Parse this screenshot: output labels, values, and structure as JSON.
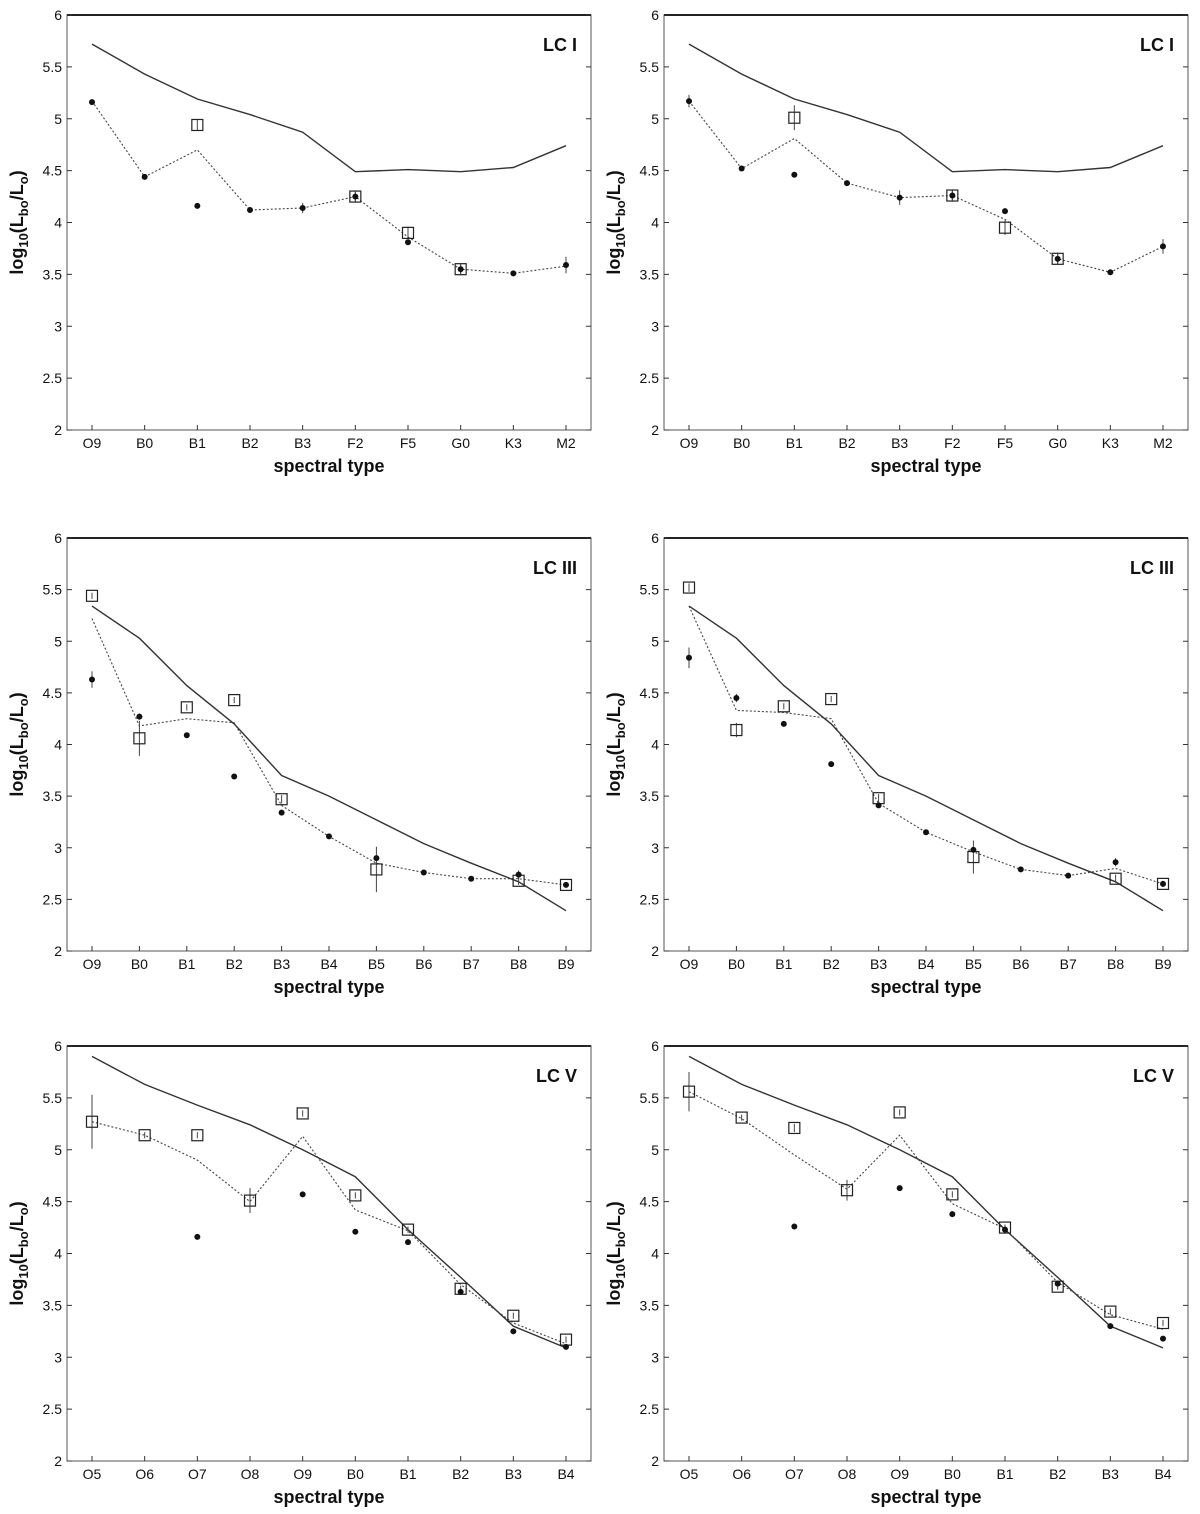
{
  "figure": {
    "panels": [
      {
        "label": "LC I",
        "xlabel": "spectral type",
        "ylabel_main": "log",
        "ylabel_sub": "10",
        "ylabel_L": "(L",
        "ylabel_bo": "bo",
        "ylabel_slash": "/L",
        "ylabel_o": "o",
        "ylabel_close": ")"
      },
      {
        "label": "LC I",
        "xlabel": "spectral type",
        "ylabel_main": "log",
        "ylabel_sub": "10",
        "ylabel_L": "(L",
        "ylabel_bo": "bo",
        "ylabel_slash": "/L",
        "ylabel_o": "o",
        "ylabel_close": ")"
      },
      {
        "label": "LC III",
        "xlabel": "spectral type",
        "ylabel_main": "log",
        "ylabel_sub": "10",
        "ylabel_L": "(L",
        "ylabel_bo": "bo",
        "ylabel_slash": "/L",
        "ylabel_o": "o",
        "ylabel_close": ")"
      },
      {
        "label": "LC III",
        "xlabel": "spectral type",
        "ylabel_main": "log",
        "ylabel_sub": "10",
        "ylabel_L": "(L",
        "ylabel_bo": "bo",
        "ylabel_slash": "/L",
        "ylabel_o": "o",
        "ylabel_close": ")"
      },
      {
        "label": "LC V",
        "xlabel": "spectral type",
        "ylabel_main": "log",
        "ylabel_sub": "10",
        "ylabel_L": "(L",
        "ylabel_bo": "bo",
        "ylabel_slash": "/L",
        "ylabel_o": "o",
        "ylabel_close": ")"
      },
      {
        "label": "LC V",
        "xlabel": "spectral type",
        "ylabel_main": "log",
        "ylabel_sub": "10",
        "ylabel_L": "(L",
        "ylabel_bo": "bo",
        "ylabel_slash": "/L",
        "ylabel_o": "o",
        "ylabel_close": ")"
      }
    ]
  },
  "chart_data": [
    {
      "type": "line",
      "title": "LC I",
      "xlabel": "spectral type",
      "ylabel": "log10(Lbo/Lo)",
      "ylim": [
        2,
        6
      ],
      "yticks": [
        2,
        2.5,
        3,
        3.5,
        4,
        4.5,
        5,
        5.5,
        6
      ],
      "categories": [
        "O9",
        "B0",
        "B1",
        "B2",
        "B3",
        "F2",
        "F5",
        "G0",
        "K3",
        "M2"
      ],
      "series": [
        {
          "style": "solid",
          "values": [
            5.72,
            5.43,
            5.19,
            5.04,
            4.87,
            4.49,
            4.51,
            4.49,
            4.53,
            4.74
          ]
        },
        {
          "style": "dotted",
          "values": [
            5.17,
            4.44,
            4.7,
            4.12,
            4.14,
            4.25,
            3.86,
            3.55,
            3.51,
            3.58
          ]
        },
        {
          "style": "square",
          "values": [
            null,
            null,
            4.94,
            null,
            null,
            4.25,
            3.9,
            3.55,
            null,
            null
          ],
          "errors": [
            null,
            null,
            0.05,
            null,
            null,
            0.05,
            0.06,
            0.06,
            null,
            null
          ]
        },
        {
          "style": "dot",
          "values": [
            5.16,
            4.44,
            4.16,
            4.12,
            4.14,
            4.25,
            3.81,
            3.55,
            3.51,
            3.59
          ],
          "errors": [
            0.02,
            0,
            0,
            0,
            0.05,
            0.06,
            0,
            0.06,
            0,
            0.08
          ]
        }
      ]
    },
    {
      "type": "line",
      "title": "LC I",
      "xlabel": "spectral type",
      "ylabel": "log10(Lbo/Lo)",
      "ylim": [
        2,
        6
      ],
      "yticks": [
        2,
        2.5,
        3,
        3.5,
        4,
        4.5,
        5,
        5.5,
        6
      ],
      "categories": [
        "O9",
        "B0",
        "B1",
        "B2",
        "B3",
        "F2",
        "F5",
        "G0",
        "K3",
        "M2"
      ],
      "series": [
        {
          "style": "solid",
          "values": [
            5.72,
            5.43,
            5.19,
            5.04,
            4.87,
            4.49,
            4.51,
            4.49,
            4.53,
            4.74
          ]
        },
        {
          "style": "dotted",
          "values": [
            5.17,
            4.52,
            4.81,
            4.38,
            4.24,
            4.26,
            4.03,
            3.65,
            3.52,
            3.77
          ]
        },
        {
          "style": "square",
          "values": [
            null,
            null,
            5.01,
            null,
            null,
            4.26,
            3.95,
            3.65,
            null,
            null
          ],
          "errors": [
            null,
            null,
            0.12,
            null,
            null,
            0.06,
            0.07,
            0.06,
            null,
            null
          ]
        },
        {
          "style": "dot",
          "values": [
            5.17,
            4.52,
            4.46,
            4.38,
            4.24,
            4.26,
            4.11,
            3.65,
            3.52,
            3.77
          ],
          "errors": [
            0.06,
            0,
            0,
            0,
            0.07,
            0.06,
            0,
            0.06,
            0,
            0.07
          ]
        }
      ]
    },
    {
      "type": "line",
      "title": "LC III",
      "xlabel": "spectral type",
      "ylabel": "log10(Lbo/Lo)",
      "ylim": [
        2,
        6
      ],
      "yticks": [
        2,
        2.5,
        3,
        3.5,
        4,
        4.5,
        5,
        5.5,
        6
      ],
      "categories": [
        "O9",
        "B0",
        "B1",
        "B2",
        "B3",
        "B4",
        "B5",
        "B6",
        "B7",
        "B8",
        "B9"
      ],
      "series": [
        {
          "style": "solid",
          "values": [
            5.34,
            5.03,
            4.57,
            4.2,
            3.7,
            3.5,
            3.27,
            3.04,
            2.85,
            2.67,
            2.39
          ]
        },
        {
          "style": "dotted",
          "values": [
            5.22,
            4.18,
            4.25,
            4.21,
            3.41,
            3.11,
            2.85,
            2.76,
            2.7,
            2.7,
            2.64
          ]
        },
        {
          "style": "square",
          "values": [
            5.44,
            4.06,
            4.36,
            4.43,
            3.47,
            null,
            2.79,
            null,
            null,
            2.68,
            2.64
          ],
          "errors": [
            0.03,
            0.17,
            0.03,
            0.03,
            0.04,
            null,
            0.22,
            null,
            null,
            0.04,
            0.02
          ]
        },
        {
          "style": "dot",
          "values": [
            4.63,
            4.27,
            4.09,
            3.69,
            3.34,
            3.11,
            2.9,
            2.76,
            2.7,
            2.74,
            2.64
          ],
          "errors": [
            0.08,
            0.03,
            0,
            0,
            0,
            0,
            0,
            0,
            0,
            0.04,
            0
          ]
        }
      ]
    },
    {
      "type": "line",
      "title": "LC III",
      "xlabel": "spectral type",
      "ylabel": "log10(Lbo/Lo)",
      "ylim": [
        2,
        6
      ],
      "yticks": [
        2,
        2.5,
        3,
        3.5,
        4,
        4.5,
        5,
        5.5,
        6
      ],
      "categories": [
        "O9",
        "B0",
        "B1",
        "B2",
        "B3",
        "B4",
        "B5",
        "B6",
        "B7",
        "B8",
        "B9"
      ],
      "series": [
        {
          "style": "solid",
          "values": [
            5.34,
            5.03,
            4.57,
            4.2,
            3.7,
            3.5,
            3.27,
            3.04,
            2.85,
            2.67,
            2.39
          ]
        },
        {
          "style": "dotted",
          "values": [
            5.34,
            4.33,
            4.31,
            4.25,
            3.43,
            3.15,
            2.96,
            2.79,
            2.73,
            2.8,
            2.65
          ]
        },
        {
          "style": "square",
          "values": [
            5.52,
            4.14,
            4.37,
            4.44,
            3.48,
            null,
            2.91,
            null,
            null,
            2.7,
            2.65
          ],
          "errors": [
            0.04,
            0.07,
            0.03,
            0.03,
            0.04,
            null,
            0.16,
            null,
            null,
            0.04,
            0.03
          ]
        },
        {
          "style": "dot",
          "values": [
            4.84,
            4.45,
            4.2,
            3.81,
            3.41,
            3.15,
            2.98,
            2.79,
            2.73,
            2.86,
            2.65
          ],
          "errors": [
            0.1,
            0.04,
            0,
            0,
            0,
            0,
            0,
            0,
            0,
            0.04,
            0
          ]
        }
      ]
    },
    {
      "type": "line",
      "title": "LC V",
      "xlabel": "spectral type",
      "ylabel": "log10(Lbo/Lo)",
      "ylim": [
        2,
        6
      ],
      "yticks": [
        2,
        2.5,
        3,
        3.5,
        4,
        4.5,
        5,
        5.5,
        6
      ],
      "categories": [
        "O5",
        "O6",
        "O7",
        "O8",
        "O9",
        "B0",
        "B1",
        "B2",
        "B3",
        "B4"
      ],
      "series": [
        {
          "style": "solid",
          "values": [
            5.9,
            5.63,
            5.43,
            5.24,
            5.0,
            4.74,
            4.23,
            3.77,
            3.3,
            3.09
          ]
        },
        {
          "style": "dotted",
          "values": [
            5.27,
            5.14,
            4.9,
            4.5,
            5.13,
            4.42,
            4.22,
            3.7,
            3.33,
            3.13
          ]
        },
        {
          "style": "square",
          "values": [
            5.27,
            5.14,
            5.14,
            4.51,
            5.35,
            4.56,
            4.23,
            3.66,
            3.4,
            3.17
          ],
          "errors": [
            0.26,
            0.03,
            0.03,
            0.12,
            0.03,
            0.03,
            0.03,
            0.03,
            0.03,
            0.03
          ]
        },
        {
          "style": "dot",
          "values": [
            null,
            null,
            4.16,
            null,
            4.57,
            4.21,
            4.11,
            3.63,
            3.25,
            3.1
          ],
          "errors": [
            null,
            null,
            0,
            null,
            0,
            0,
            0,
            0,
            0,
            0
          ]
        }
      ]
    },
    {
      "type": "line",
      "title": "LC V",
      "xlabel": "spectral type",
      "ylabel": "log10(Lbo/Lo)",
      "ylim": [
        2,
        6
      ],
      "yticks": [
        2,
        2.5,
        3,
        3.5,
        4,
        4.5,
        5,
        5.5,
        6
      ],
      "categories": [
        "O5",
        "O6",
        "O7",
        "O8",
        "O9",
        "B0",
        "B1",
        "B2",
        "B3",
        "B4"
      ],
      "series": [
        {
          "style": "solid",
          "values": [
            5.9,
            5.63,
            5.43,
            5.24,
            5.0,
            4.74,
            4.23,
            3.77,
            3.3,
            3.09
          ]
        },
        {
          "style": "dotted",
          "values": [
            5.56,
            5.3,
            4.95,
            4.62,
            5.14,
            4.48,
            4.24,
            3.72,
            3.41,
            3.27
          ]
        },
        {
          "style": "square",
          "values": [
            5.56,
            5.31,
            5.21,
            4.61,
            5.36,
            4.57,
            4.25,
            3.68,
            3.44,
            3.33
          ],
          "errors": [
            0.19,
            0.03,
            0.04,
            0.1,
            0.03,
            0.03,
            0.03,
            0.03,
            0.03,
            0.03
          ]
        },
        {
          "style": "dot",
          "values": [
            null,
            null,
            4.26,
            null,
            4.63,
            4.38,
            4.23,
            3.71,
            3.3,
            3.18
          ],
          "errors": [
            null,
            null,
            0,
            null,
            0,
            0,
            0,
            0,
            0,
            0
          ]
        }
      ]
    }
  ]
}
